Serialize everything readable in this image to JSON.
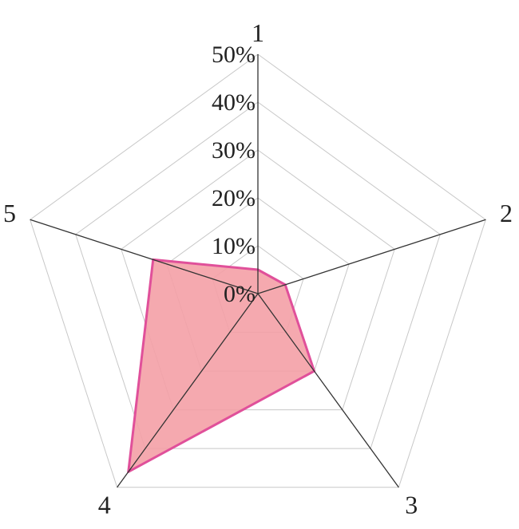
{
  "chart_data": {
    "type": "radar",
    "categories": [
      "1",
      "2",
      "3",
      "4",
      "5"
    ],
    "series": [
      {
        "values": [
          5,
          6,
          20,
          46,
          23
        ],
        "fill": "#f4a0a6",
        "stroke": "#e0509a"
      }
    ],
    "rlim": [
      0,
      50
    ],
    "ticks": [
      0,
      10,
      20,
      30,
      40,
      50
    ],
    "tick_labels": [
      "0%",
      "10%",
      "20%",
      "30%",
      "40%",
      "50%"
    ],
    "grid": true,
    "colors": {
      "grid": "#c8c8c8",
      "axis": "#333333"
    }
  }
}
